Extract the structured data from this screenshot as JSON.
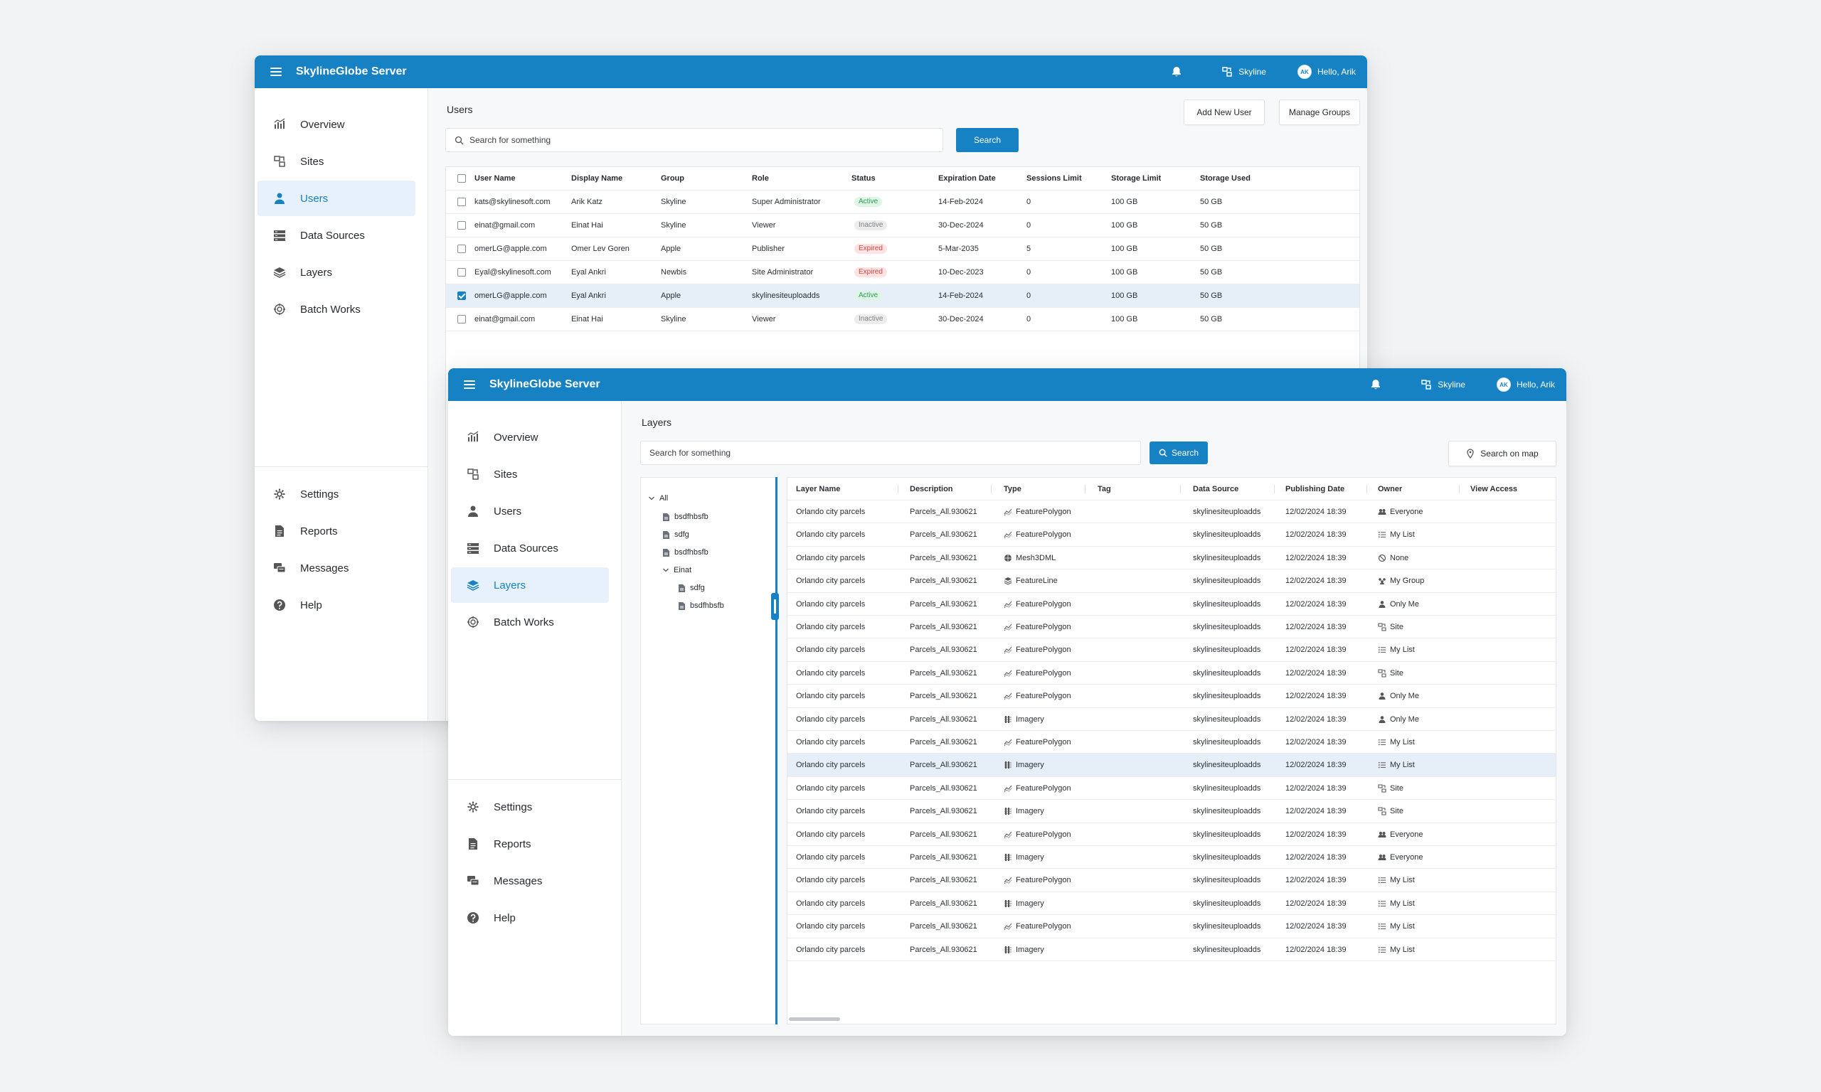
{
  "app": {
    "title": "SkylineGlobe Server",
    "company": "Skyline",
    "greeting": "Hello, Arik",
    "avatar_initials": "AK"
  },
  "nav": {
    "top": [
      "Overview",
      "Sites",
      "Users",
      "Data Sources",
      "Layers",
      "Batch Works"
    ],
    "bottom": [
      "Settings",
      "Reports",
      "Messages",
      "Help"
    ]
  },
  "users_page": {
    "title": "Users",
    "search_placeholder": "Search for something",
    "search_button": "Search",
    "add_user_button": "Add New User",
    "manage_groups_button": "Manage Groups",
    "columns": [
      "User Name",
      "Display Name",
      "Group",
      "Role",
      "Status",
      "Expiration Date",
      "Sessions Limit",
      "Storage Limit",
      "Storage Used"
    ],
    "rows": [
      {
        "user": "kats@skylinesoft.com",
        "display": "Arik Katz",
        "group": "Skyline",
        "role": "Super Administrator",
        "status": "Active",
        "expiration": "14-Feb-2024",
        "sessions": "0",
        "storage_limit": "100 GB",
        "storage_used": "50 GB",
        "checked": false
      },
      {
        "user": "einat@gmail.com",
        "display": "Einat Hai",
        "group": "Skyline",
        "role": "Viewer",
        "status": "Inactive",
        "expiration": "30-Dec-2024",
        "sessions": "0",
        "storage_limit": "100 GB",
        "storage_used": "50 GB",
        "checked": false
      },
      {
        "user": "omerLG@apple.com",
        "display": "Omer Lev Goren",
        "group": "Apple",
        "role": "Publisher",
        "status": "Expired",
        "expiration": "5-Mar-2035",
        "sessions": "5",
        "storage_limit": "100 GB",
        "storage_used": "50 GB",
        "checked": false
      },
      {
        "user": "Eyal@skylinesoft.com",
        "display": "Eyal Ankri",
        "group": "Newbis",
        "role": "Site Administrator",
        "status": "Expired",
        "expiration": "10-Dec-2023",
        "sessions": "0",
        "storage_limit": "100 GB",
        "storage_used": "50 GB",
        "checked": false
      },
      {
        "user": "omerLG@apple.com",
        "display": "Eyal Ankri",
        "group": "Apple",
        "role": "skylinesiteuploadds",
        "status": "Active",
        "expiration": "14-Feb-2024",
        "sessions": "0",
        "storage_limit": "100 GB",
        "storage_used": "50 GB",
        "checked": true
      },
      {
        "user": "einat@gmail.com",
        "display": "Einat Hai",
        "group": "Skyline",
        "role": "Viewer",
        "status": "Inactive",
        "expiration": "30-Dec-2024",
        "sessions": "0",
        "storage_limit": "100 GB",
        "storage_used": "50 GB",
        "checked": false
      }
    ]
  },
  "layers_page": {
    "title": "Layers",
    "search_placeholder": "Search for something",
    "search_button": "Search",
    "search_on_map_button": "Search on map",
    "tree": [
      {
        "label": "All",
        "level": 0,
        "type": "folder-open"
      },
      {
        "label": "bsdfhbsfb",
        "level": 1,
        "type": "file"
      },
      {
        "label": "sdfg",
        "level": 1,
        "type": "file"
      },
      {
        "label": "bsdfhbsfb",
        "level": 1,
        "type": "file"
      },
      {
        "label": "Einat",
        "level": 1,
        "type": "folder-open"
      },
      {
        "label": "sdfg",
        "level": 2,
        "type": "file"
      },
      {
        "label": "bsdfhbsfb",
        "level": 2,
        "type": "file"
      }
    ],
    "columns": [
      "Layer Name",
      "Description",
      "Type",
      "Tag",
      "Data Source",
      "Publishing Date",
      "Owner",
      "View Access"
    ],
    "rows": [
      {
        "name": "Orlando city parcels",
        "desc": "Parcels_All.930621",
        "type": "FeaturePolygon",
        "source": "skylinesiteuploadds",
        "date": "12/02/2024 18:39",
        "owner": "Everyone"
      },
      {
        "name": "Orlando city parcels",
        "desc": "Parcels_All.930621",
        "type": "FeaturePolygon",
        "source": "skylinesiteuploadds",
        "date": "12/02/2024 18:39",
        "owner": "My List"
      },
      {
        "name": "Orlando city parcels",
        "desc": "Parcels_All.930621",
        "type": "Mesh3DML",
        "source": "skylinesiteuploadds",
        "date": "12/02/2024 18:39",
        "owner": "None"
      },
      {
        "name": "Orlando city parcels",
        "desc": "Parcels_All.930621",
        "type": "FeatureLine",
        "source": "skylinesiteuploadds",
        "date": "12/02/2024 18:39",
        "owner": "My Group"
      },
      {
        "name": "Orlando city parcels",
        "desc": "Parcels_All.930621",
        "type": "FeaturePolygon",
        "source": "skylinesiteuploadds",
        "date": "12/02/2024 18:39",
        "owner": "Only Me"
      },
      {
        "name": "Orlando city parcels",
        "desc": "Parcels_All.930621",
        "type": "FeaturePolygon",
        "source": "skylinesiteuploadds",
        "date": "12/02/2024 18:39",
        "owner": "Site"
      },
      {
        "name": "Orlando city parcels",
        "desc": "Parcels_All.930621",
        "type": "FeaturePolygon",
        "source": "skylinesiteuploadds",
        "date": "12/02/2024 18:39",
        "owner": "My List"
      },
      {
        "name": "Orlando city parcels",
        "desc": "Parcels_All.930621",
        "type": "FeaturePolygon",
        "source": "skylinesiteuploadds",
        "date": "12/02/2024 18:39",
        "owner": "Site"
      },
      {
        "name": "Orlando city parcels",
        "desc": "Parcels_All.930621",
        "type": "FeaturePolygon",
        "source": "skylinesiteuploadds",
        "date": "12/02/2024 18:39",
        "owner": "Only Me"
      },
      {
        "name": "Orlando city parcels",
        "desc": "Parcels_All.930621",
        "type": "Imagery",
        "source": "skylinesiteuploadds",
        "date": "12/02/2024 18:39",
        "owner": "Only Me"
      },
      {
        "name": "Orlando city parcels",
        "desc": "Parcels_All.930621",
        "type": "FeaturePolygon",
        "source": "skylinesiteuploadds",
        "date": "12/02/2024 18:39",
        "owner": "My List"
      },
      {
        "name": "Orlando city parcels",
        "desc": "Parcels_All.930621",
        "type": "Imagery",
        "source": "skylinesiteuploadds",
        "date": "12/02/2024 18:39",
        "owner": "My List",
        "selected": true
      },
      {
        "name": "Orlando city parcels",
        "desc": "Parcels_All.930621",
        "type": "FeaturePolygon",
        "source": "skylinesiteuploadds",
        "date": "12/02/2024 18:39",
        "owner": "Site"
      },
      {
        "name": "Orlando city parcels",
        "desc": "Parcels_All.930621",
        "type": "Imagery",
        "source": "skylinesiteuploadds",
        "date": "12/02/2024 18:39",
        "owner": "Site"
      },
      {
        "name": "Orlando city parcels",
        "desc": "Parcels_All.930621",
        "type": "FeaturePolygon",
        "source": "skylinesiteuploadds",
        "date": "12/02/2024 18:39",
        "owner": "Everyone"
      },
      {
        "name": "Orlando city parcels",
        "desc": "Parcels_All.930621",
        "type": "Imagery",
        "source": "skylinesiteuploadds",
        "date": "12/02/2024 18:39",
        "owner": "Everyone"
      },
      {
        "name": "Orlando city parcels",
        "desc": "Parcels_All.930621",
        "type": "FeaturePolygon",
        "source": "skylinesiteuploadds",
        "date": "12/02/2024 18:39",
        "owner": "My List"
      },
      {
        "name": "Orlando city parcels",
        "desc": "Parcels_All.930621",
        "type": "Imagery",
        "source": "skylinesiteuploadds",
        "date": "12/02/2024 18:39",
        "owner": "My List"
      },
      {
        "name": "Orlando city parcels",
        "desc": "Parcels_All.930621",
        "type": "FeaturePolygon",
        "source": "skylinesiteuploadds",
        "date": "12/02/2024 18:39",
        "owner": "My List"
      },
      {
        "name": "Orlando city parcels",
        "desc": "Parcels_All.930621",
        "type": "Imagery",
        "source": "skylinesiteuploadds",
        "date": "12/02/2024 18:39",
        "owner": "My List"
      }
    ]
  },
  "icons": {
    "nav": [
      "chart-icon",
      "sites-icon",
      "user-icon",
      "database-icon",
      "layers-icon",
      "batch-icon"
    ],
    "nav_bottom": [
      "gear-icon",
      "report-icon",
      "messages-icon",
      "help-icon"
    ]
  },
  "colors": {
    "primary": "#1782c3",
    "active_bg": "#e6f1fb",
    "selected_row": "#e6eef8",
    "status_active": "#2e9b57",
    "status_inactive": "#7b8088",
    "status_expired": "#d6433f"
  }
}
